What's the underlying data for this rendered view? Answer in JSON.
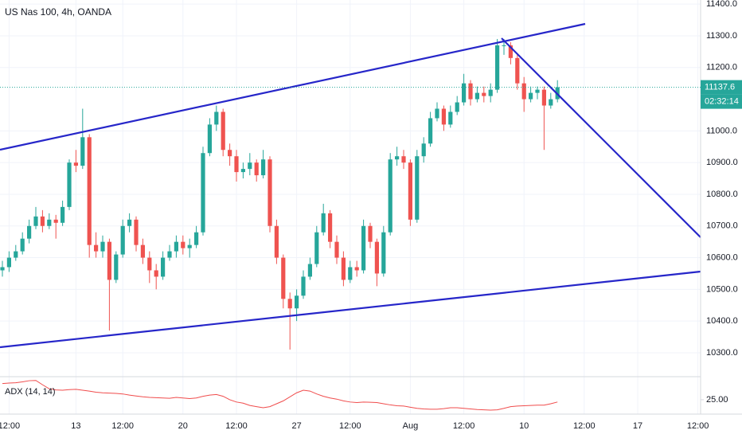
{
  "chart_data": {
    "type": "candlestick",
    "title": "US Nas 100, 4h, OANDA",
    "categories": [
      null,
      "12:00",
      null,
      null,
      null,
      null,
      null,
      null,
      null,
      null,
      null,
      "13",
      null,
      null,
      null,
      null,
      null,
      null,
      "12:00",
      null,
      null,
      null,
      null,
      null,
      null,
      null,
      null,
      "20",
      null,
      null,
      null,
      null,
      null,
      null,
      null,
      "12:00",
      null,
      null,
      null,
      null,
      null,
      null,
      null,
      null,
      "27",
      null,
      null,
      null,
      null,
      null,
      null,
      null,
      "12:00",
      null,
      null,
      null,
      null,
      null,
      null,
      null,
      null,
      "Aug",
      null,
      null,
      null,
      null,
      null,
      null,
      null,
      "12:00",
      null,
      null,
      null,
      null,
      null,
      null,
      null,
      null,
      "10",
      null,
      null,
      null,
      null,
      null,
      null,
      null,
      null,
      "12:00",
      null,
      null,
      null,
      null,
      null,
      null,
      null,
      "17",
      null,
      null,
      null,
      null,
      null,
      null,
      null,
      null,
      "12:00"
    ],
    "open": [
      10560,
      10570,
      10600,
      10620,
      10660,
      10700,
      10730,
      10700,
      10720,
      10710,
      10760,
      10900,
      10890,
      10980,
      10640,
      10620,
      10650,
      10530,
      10610,
      10700,
      10720,
      10640,
      10600,
      10560,
      10540,
      10600,
      10620,
      10650,
      10630,
      10640,
      10680,
      10930,
      11020,
      11060,
      10940,
      10920,
      10870,
      10880,
      10900,
      10860,
      10910,
      10700,
      10600,
      10470,
      10440,
      10480,
      10540,
      10580,
      10680,
      10740,
      10650,
      10600,
      10530,
      10570,
      10560,
      10700,
      10650,
      10550,
      10680,
      10910,
      10920,
      10900,
      10720,
      10920,
      10960,
      11040,
      11070,
      11020,
      11060,
      11090,
      11150,
      11100,
      11120,
      11110,
      11130,
      11270,
      11270,
      11230,
      11150,
      11100,
      11120,
      11130,
      11080,
      11100,
      null,
      null,
      null,
      null,
      null,
      null,
      null,
      null,
      null,
      null,
      null,
      null,
      null,
      null,
      null,
      null,
      null,
      null,
      null,
      null,
      null
    ],
    "high": [
      10590,
      10620,
      10640,
      10680,
      10720,
      10760,
      10750,
      10740,
      10735,
      10780,
      10910,
      10940,
      11070,
      10990,
      10680,
      10670,
      10660,
      10620,
      10720,
      10740,
      10730,
      10660,
      10620,
      10580,
      10620,
      10640,
      10670,
      10670,
      10660,
      10700,
      10950,
      11040,
      11080,
      11070,
      10960,
      10940,
      10900,
      10930,
      10910,
      10940,
      10920,
      10720,
      10610,
      10490,
      10500,
      10560,
      10600,
      10700,
      10770,
      10750,
      10670,
      10620,
      10590,
      10590,
      10720,
      10710,
      10660,
      10700,
      10930,
      10950,
      10940,
      10910,
      10940,
      10980,
      11060,
      11090,
      11080,
      11080,
      11110,
      11180,
      11160,
      11140,
      11140,
      11150,
      11290,
      11290,
      11280,
      11240,
      11170,
      11140,
      11140,
      11140,
      11120,
      11160,
      null,
      null,
      null,
      null,
      null,
      null,
      null,
      null,
      null,
      null,
      null,
      null,
      null,
      null,
      null,
      null,
      null,
      null,
      null,
      null,
      null
    ],
    "low": [
      10540,
      10555,
      10590,
      10610,
      10645,
      10690,
      10680,
      10690,
      10660,
      10700,
      10750,
      10870,
      10880,
      10600,
      10600,
      10600,
      10370,
      10520,
      10600,
      10680,
      10620,
      10580,
      10520,
      10500,
      10530,
      10590,
      10600,
      10610,
      10600,
      10630,
      10670,
      10920,
      11000,
      10920,
      10890,
      10840,
      10850,
      10860,
      10840,
      10850,
      10680,
      10580,
      10440,
      10310,
      10400,
      10470,
      10530,
      10570,
      10670,
      10630,
      10580,
      10510,
      10520,
      10540,
      10550,
      10630,
      10510,
      10540,
      10670,
      10890,
      10880,
      10700,
      10710,
      10900,
      10950,
      11030,
      11000,
      11010,
      11050,
      11080,
      11080,
      11090,
      11090,
      11090,
      11120,
      11240,
      11210,
      11130,
      11060,
      11090,
      11100,
      10940,
      11070,
      11090,
      null,
      null,
      null,
      null,
      null,
      null,
      null,
      null,
      null,
      null,
      null,
      null,
      null,
      null,
      null,
      null,
      null,
      null,
      null,
      null,
      null
    ],
    "close": [
      10570,
      10600,
      10620,
      10660,
      10700,
      10730,
      10700,
      10720,
      10710,
      10760,
      10900,
      10890,
      10980,
      10640,
      10620,
      10650,
      10530,
      10610,
      10700,
      10720,
      10640,
      10600,
      10560,
      10540,
      10600,
      10620,
      10650,
      10630,
      10640,
      10680,
      10930,
      11020,
      11060,
      10940,
      10920,
      10870,
      10880,
      10900,
      10860,
      10910,
      10700,
      10600,
      10470,
      10440,
      10480,
      10540,
      10580,
      10680,
      10740,
      10650,
      10600,
      10530,
      10570,
      10560,
      10700,
      10650,
      10550,
      10680,
      10910,
      10920,
      10900,
      10720,
      10920,
      10960,
      11040,
      11070,
      11020,
      11060,
      11090,
      11150,
      11100,
      11120,
      11110,
      11130,
      11270,
      11270,
      11230,
      11150,
      11100,
      11120,
      11130,
      11080,
      11100,
      11137.6,
      null,
      null,
      null,
      null,
      null,
      null,
      null,
      null,
      null,
      null,
      null,
      null,
      null,
      null,
      null,
      null,
      null,
      null,
      null,
      null,
      null
    ],
    "up_color": "#26a69a",
    "down_color": "#ef5350",
    "ylim": [
      10232,
      11413
    ],
    "yticks": [
      {
        "value": 10300,
        "label": "10300.0"
      },
      {
        "value": 10400,
        "label": "10400.0"
      },
      {
        "value": 10500,
        "label": "10500.0"
      },
      {
        "value": 10600,
        "label": "10600.0"
      },
      {
        "value": 10700,
        "label": "10700.0"
      },
      {
        "value": 10800,
        "label": "10800.0"
      },
      {
        "value": 10900,
        "label": "10900.0"
      },
      {
        "value": 11000,
        "label": "11000.0"
      },
      {
        "value": 11200,
        "label": "11200.0"
      },
      {
        "value": 11300,
        "label": "11300.0"
      },
      {
        "value": 11400,
        "label": "11400.0"
      }
    ],
    "countdown": "02:32:14",
    "grid": true,
    "indicator": {
      "name": "ADX (14, 14)",
      "color": "#f04c4c",
      "values": [
        30.6,
        30.8,
        30.9,
        31.2,
        31.6,
        31.7,
        30.2,
        28.8,
        28.4,
        28.3,
        28.5,
        28.6,
        28.3,
        28.0,
        27.6,
        27.4,
        27.3,
        27.2,
        27.0,
        26.6,
        26.3,
        26.0,
        25.8,
        25.7,
        25.6,
        25.5,
        25.8,
        25.6,
        25.4,
        25.6,
        26.2,
        26.6,
        26.8,
        26.2,
        25.0,
        24.2,
        23.8,
        23.0,
        22.6,
        22.2,
        22.6,
        23.6,
        24.6,
        26.0,
        27.4,
        28.3,
        28.0,
        27.0,
        26.2,
        25.6,
        25.2,
        24.6,
        24.2,
        24.0,
        24.2,
        24.1,
        24.0,
        23.6,
        23.2,
        22.9,
        22.8,
        22.4,
        22.0,
        21.8,
        21.7,
        21.7,
        21.9,
        22.2,
        22.2,
        22.0,
        21.8,
        21.6,
        21.5,
        21.4,
        21.5,
        22.0,
        22.6,
        22.8,
        22.9,
        23.0,
        23.1,
        23.1,
        23.6,
        24.2,
        null,
        null,
        null,
        null,
        null,
        null,
        null,
        null,
        null,
        null,
        null,
        null,
        null,
        null,
        null,
        null,
        null,
        null,
        null,
        null,
        null
      ],
      "ylim": [
        20,
        33
      ],
      "yticks": [
        {
          "value": 25,
          "label": "25.00"
        }
      ]
    }
  }
}
